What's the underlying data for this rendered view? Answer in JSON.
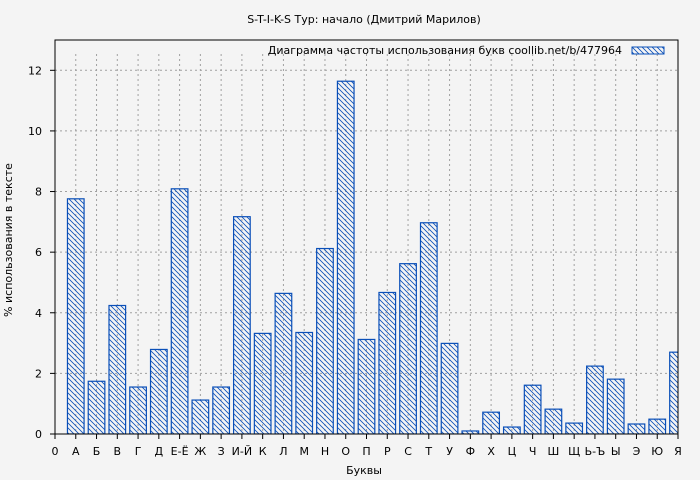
{
  "chart_data": {
    "type": "bar",
    "title": "S-T-I-K-S Тур: начало (Дмитрий Марилов)",
    "xlabel": "Буквы",
    "ylabel": "% использования в тексте",
    "legend": {
      "label": "Диаграмма частоты использования букв  coollib.net/b/477964",
      "placement": "top-right"
    },
    "x_tick_labels": [
      "0",
      "А",
      "Б",
      "В",
      "Г",
      "Д",
      "Е-Ё",
      "Ж",
      "З",
      "И-Й",
      "К",
      "Л",
      "М",
      "Н",
      "О",
      "П",
      "Р",
      "С",
      "Т",
      "У",
      "Ф",
      "Х",
      "Ц",
      "Ч",
      "Ш",
      "Щ",
      "Ь-Ъ",
      "Ы",
      "Э",
      "Ю",
      "Я"
    ],
    "categories": [
      "А",
      "Б",
      "В",
      "Г",
      "Д",
      "Е-Ё",
      "Ж",
      "З",
      "И-Й",
      "К",
      "Л",
      "М",
      "Н",
      "О",
      "П",
      "Р",
      "С",
      "Т",
      "У",
      "Ф",
      "Х",
      "Ц",
      "Ч",
      "Ш",
      "Щ",
      "Ь-Ъ",
      "Ы",
      "Э",
      "Ю",
      "Я"
    ],
    "values": [
      7.76,
      1.74,
      4.24,
      1.55,
      2.79,
      8.09,
      1.12,
      1.55,
      7.17,
      3.32,
      4.64,
      3.35,
      6.12,
      11.64,
      3.12,
      4.67,
      5.62,
      6.97,
      2.99,
      0.1,
      0.72,
      0.23,
      1.61,
      0.82,
      0.36,
      2.24,
      1.81,
      0.33,
      0.49,
      2.7
    ],
    "ylim": [
      0,
      13
    ],
    "xlim": [
      0,
      30
    ],
    "y_ticks": [
      0,
      2,
      4,
      6,
      8,
      10,
      12
    ],
    "grid": true,
    "colors": {
      "bar_stroke": "#0a4fb8",
      "hatch": "#0a4fb8",
      "grid": "#a0a0a0",
      "background": "#f4f4f4"
    }
  }
}
